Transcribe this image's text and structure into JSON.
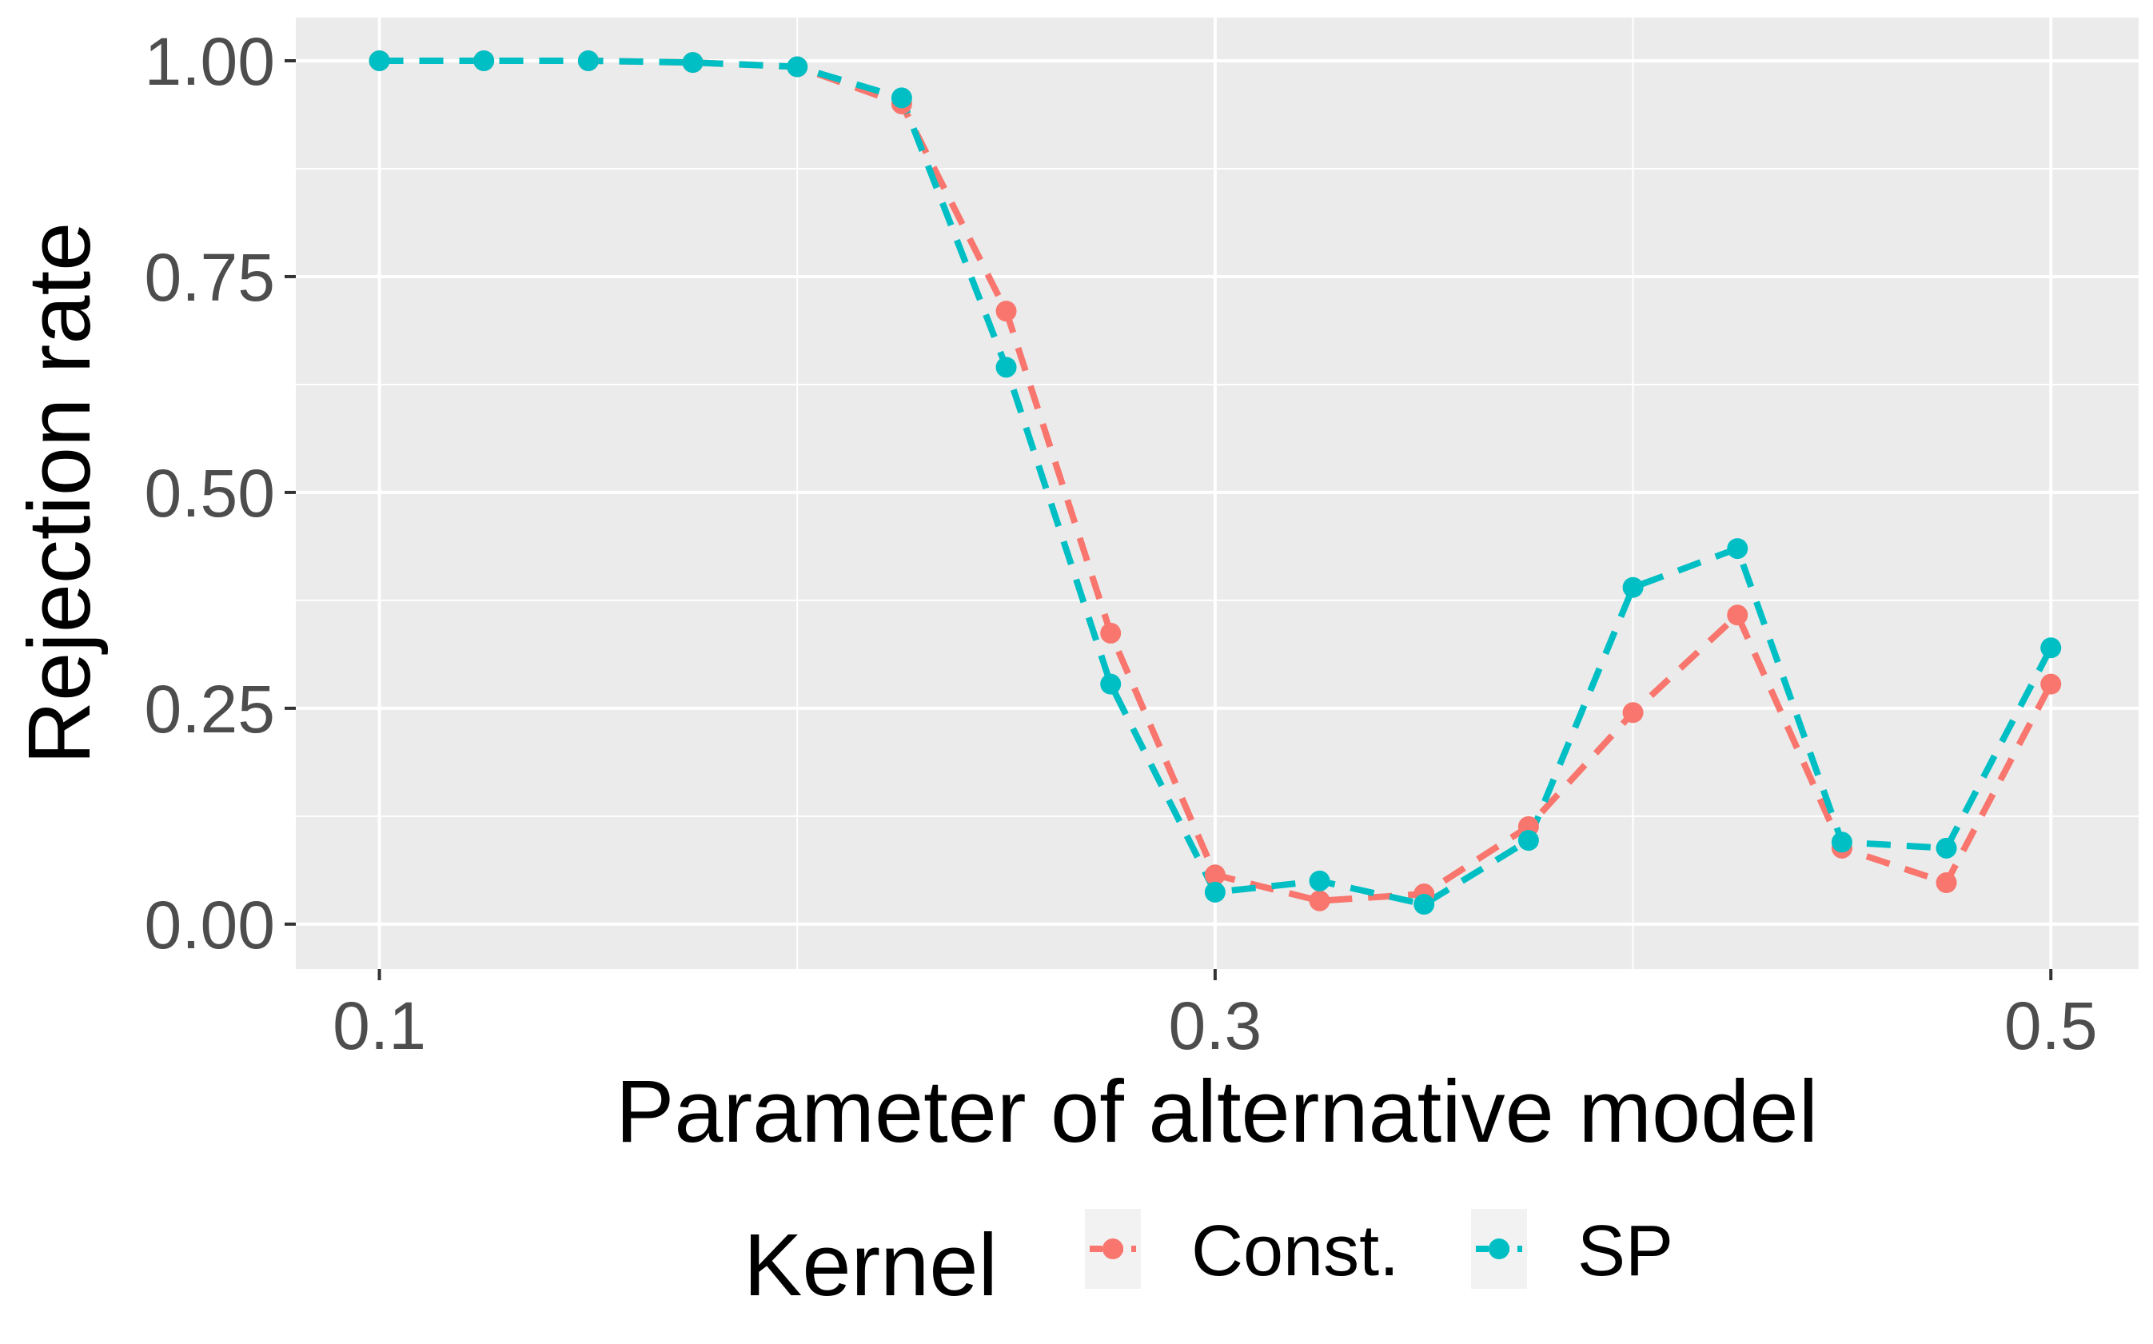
{
  "chart_data": {
    "type": "line",
    "title": "",
    "xlabel": "Parameter of alternative model",
    "ylabel": "Rejection rate",
    "xlim": [
      0.08,
      0.521
    ],
    "ylim": [
      -0.052,
      1.05
    ],
    "xticks": [
      0.1,
      0.3,
      0.5
    ],
    "xtick_labels": [
      "0.1",
      "0.3",
      "0.5"
    ],
    "xticks_minor": [
      0.2,
      0.4
    ],
    "yticks": [
      0,
      0.25,
      0.5,
      0.75,
      1
    ],
    "ytick_labels": [
      "0.00",
      "0.25",
      "0.50",
      "0.75",
      "1.00"
    ],
    "yticks_minor": [
      0.125,
      0.375,
      0.625,
      0.875
    ],
    "grid": true,
    "line_style": "dashed",
    "markers": true,
    "legend": {
      "title": "Kernel",
      "position": "bottom"
    },
    "x": [
      0.1,
      0.125,
      0.15,
      0.175,
      0.2,
      0.225,
      0.25,
      0.275,
      0.3,
      0.325,
      0.35,
      0.375,
      0.4,
      0.425,
      0.45,
      0.475,
      0.5
    ],
    "series": [
      {
        "name": "Const.",
        "color": "#F8766D",
        "values": [
          1.0,
          1.0,
          1.0,
          0.998,
          0.993,
          0.95,
          0.71,
          0.337,
          0.057,
          0.027,
          0.035,
          0.113,
          0.245,
          0.358,
          0.088,
          0.048,
          0.278
        ]
      },
      {
        "name": "SP",
        "color": "#00BFC4",
        "values": [
          1.0,
          1.0,
          1.0,
          0.998,
          0.993,
          0.957,
          0.645,
          0.278,
          0.037,
          0.05,
          0.023,
          0.097,
          0.39,
          0.435,
          0.095,
          0.088,
          0.32
        ]
      }
    ]
  }
}
